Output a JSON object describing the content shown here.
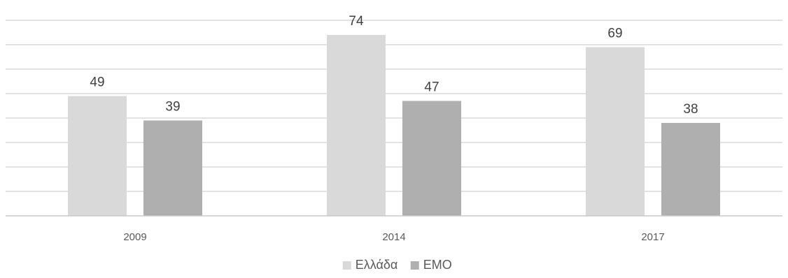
{
  "chart_data": {
    "type": "bar",
    "categories": [
      "2009",
      "2014",
      "2017"
    ],
    "series": [
      {
        "name": "Ελλάδα",
        "values": [
          49,
          74,
          69
        ],
        "color": "#d9d9d9"
      },
      {
        "name": "ΕΜΟ",
        "values": [
          39,
          47,
          38
        ],
        "color": "#afafaf"
      }
    ],
    "title": "",
    "xlabel": "",
    "ylabel": "",
    "ylim": [
      0,
      80
    ],
    "grid": true,
    "legend_position": "bottom"
  }
}
